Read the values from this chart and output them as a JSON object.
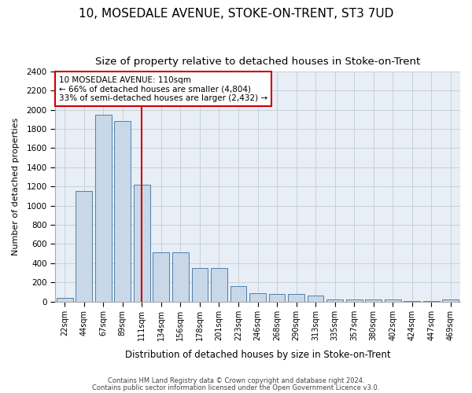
{
  "title": "10, MOSEDALE AVENUE, STOKE-ON-TRENT, ST3 7UD",
  "subtitle": "Size of property relative to detached houses in Stoke-on-Trent",
  "xlabel": "Distribution of detached houses by size in Stoke-on-Trent",
  "ylabel": "Number of detached properties",
  "footnote1": "Contains HM Land Registry data © Crown copyright and database right 2024.",
  "footnote2": "Contains public sector information licensed under the Open Government Licence v3.0.",
  "annotation_title": "10 MOSEDALE AVENUE: 110sqm",
  "annotation_line1": "← 66% of detached houses are smaller (4,804)",
  "annotation_line2": "33% of semi-detached houses are larger (2,432) →",
  "categories": [
    "22sqm",
    "44sqm",
    "67sqm",
    "89sqm",
    "111sqm",
    "134sqm",
    "156sqm",
    "178sqm",
    "201sqm",
    "223sqm",
    "246sqm",
    "268sqm",
    "290sqm",
    "313sqm",
    "335sqm",
    "357sqm",
    "380sqm",
    "402sqm",
    "424sqm",
    "447sqm",
    "469sqm"
  ],
  "bar_values": [
    40,
    1150,
    1950,
    1880,
    1220,
    510,
    510,
    350,
    350,
    160,
    90,
    80,
    80,
    60,
    20,
    20,
    20,
    20,
    5,
    5,
    20
  ],
  "bar_color": "#c8d8e8",
  "bar_edge_color": "#5080a8",
  "vline_color": "#cc0000",
  "ylim": [
    0,
    2400
  ],
  "yticks": [
    0,
    200,
    400,
    600,
    800,
    1000,
    1200,
    1400,
    1600,
    1800,
    2000,
    2200,
    2400
  ],
  "grid_color": "#c8d0dc",
  "background_color": "#e8eef5",
  "annotation_box_color": "white",
  "annotation_box_edge": "#cc0000",
  "title_fontsize": 11,
  "subtitle_fontsize": 9.5
}
